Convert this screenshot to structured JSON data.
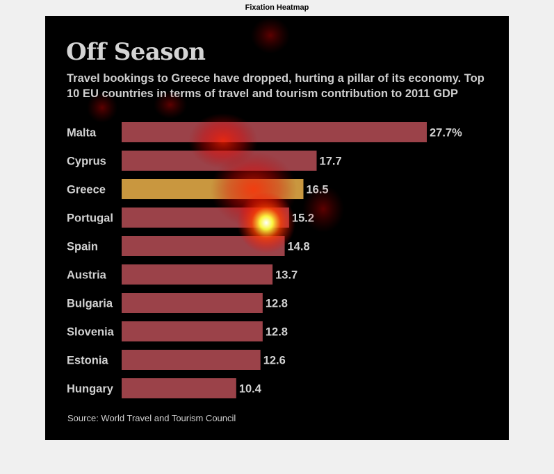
{
  "figure": {
    "title": "Fixation Heatmap"
  },
  "chart_data": {
    "type": "bar",
    "orientation": "horizontal",
    "title": "Off Season",
    "subtitle": "Travel bookings to Greece have dropped, hurting a pillar of its economy. Top 10 EU countries in terms of travel and tourism contribution to 2011 GDP",
    "source": "Source: World Travel and Tourism Council",
    "categories": [
      "Malta",
      "Cyprus",
      "Greece",
      "Portugal",
      "Spain",
      "Austria",
      "Bulgaria",
      "Slovenia",
      "Estonia",
      "Hungary"
    ],
    "values": [
      27.7,
      17.7,
      16.5,
      15.2,
      14.8,
      13.7,
      12.8,
      12.8,
      12.6,
      10.4
    ],
    "value_labels": [
      "27.7%",
      "17.7",
      "16.5",
      "15.2",
      "14.8",
      "13.7",
      "12.8",
      "12.8",
      "12.6",
      "10.4"
    ],
    "highlight": "Greece",
    "colors": {
      "bar": "#9b4249",
      "highlight_bar": "#c9973f",
      "background": "#000000",
      "text": "#d2d2d2"
    },
    "xlim": [
      0,
      27.7
    ],
    "grid": false,
    "legend": "none"
  }
}
